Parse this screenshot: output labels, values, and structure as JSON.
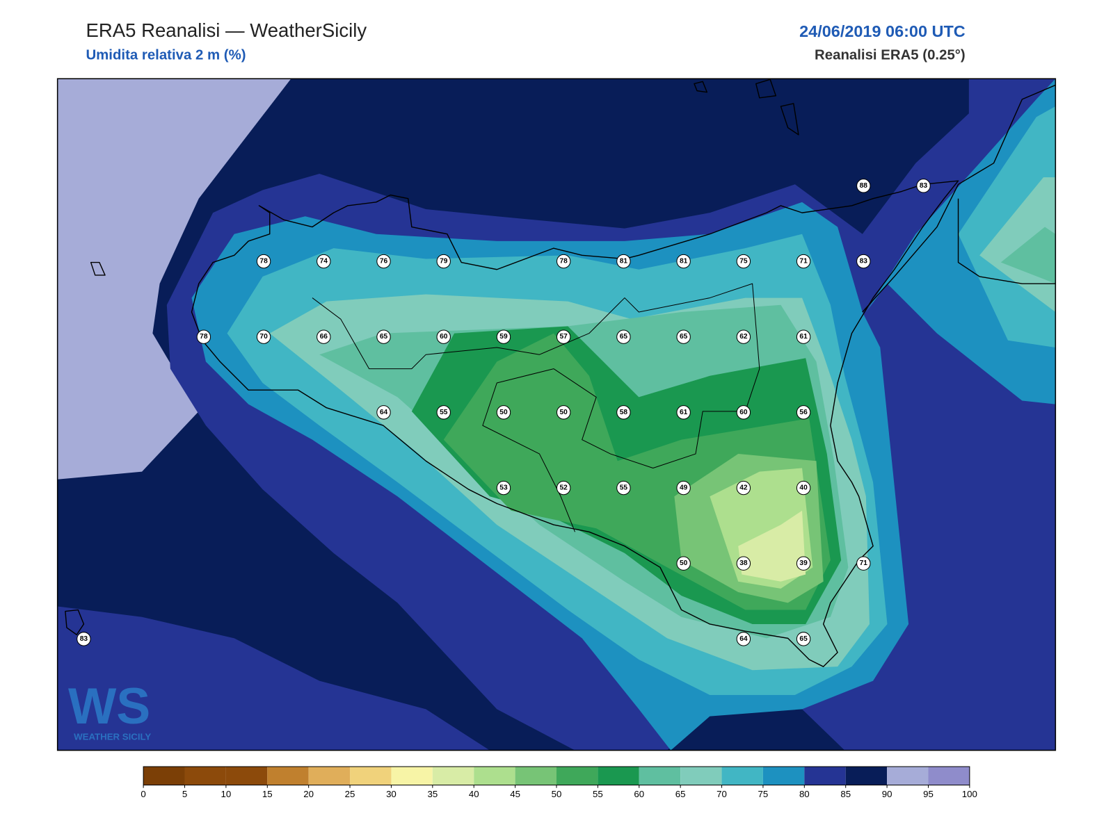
{
  "header": {
    "title": "ERA5 Reanalisi — WeatherSicily",
    "subtitle": "Umidita relativa 2 m (%)",
    "date": "24/06/2019 06:00 UTC",
    "source": "Reanalisi ERA5 (0.25°)"
  },
  "map": {
    "station_values": [
      88,
      83,
      78,
      74,
      76,
      79,
      78,
      81,
      81,
      75,
      71,
      83,
      78,
      70,
      66,
      65,
      60,
      59,
      57,
      65,
      65,
      62,
      61,
      64,
      55,
      50,
      50,
      58,
      61,
      60,
      56,
      53,
      52,
      55,
      49,
      42,
      40,
      50,
      38,
      39,
      71,
      64,
      65,
      83
    ]
  },
  "colorbar": {
    "ticks": [
      0,
      5,
      10,
      15,
      20,
      25,
      30,
      35,
      40,
      45,
      50,
      55,
      60,
      65,
      70,
      75,
      80,
      85,
      90,
      95,
      100
    ],
    "colors": [
      "#7b3f06",
      "#8c4a0b",
      "#8c4a0b",
      "#c0802e",
      "#e0ae5a",
      "#f0d27b",
      "#f7f4a6",
      "#d8eca6",
      "#addf8e",
      "#77c476",
      "#3fa85a",
      "#1a9850",
      "#5fbfa0",
      "#80ccbb",
      "#41b6c4",
      "#1d91c0",
      "#253494",
      "#081d58",
      "#a6acd8",
      "#8f8ccb"
    ]
  },
  "logo": {
    "letters": "WS",
    "text": "WEATHER SICILY"
  }
}
